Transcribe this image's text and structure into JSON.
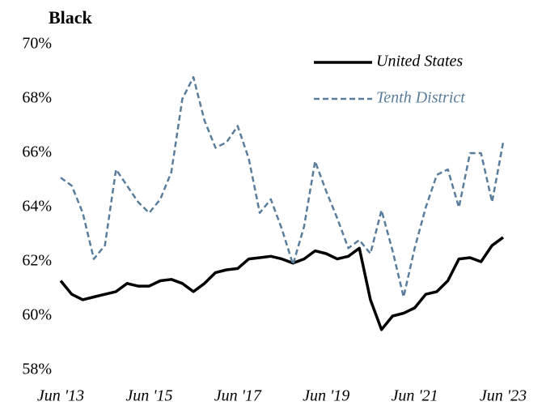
{
  "chart_data": {
    "type": "line",
    "title": "Black",
    "categories": [
      "Jun '13",
      null,
      null,
      null,
      null,
      null,
      null,
      null,
      "Jun '15",
      null,
      null,
      null,
      null,
      null,
      null,
      null,
      "Jun '17",
      null,
      null,
      null,
      null,
      null,
      null,
      null,
      "Jun '19",
      null,
      null,
      null,
      null,
      null,
      null,
      null,
      "Jun '21",
      null,
      null,
      null,
      null,
      null,
      null,
      null,
      "Jun '23"
    ],
    "series": [
      {
        "name": "United States",
        "color": "#000000",
        "dash": false,
        "values": [
          61.3,
          60.8,
          60.6,
          60.7,
          60.8,
          60.9,
          61.2,
          61.1,
          61.1,
          61.3,
          61.35,
          61.2,
          60.9,
          61.2,
          61.6,
          61.7,
          61.75,
          62.1,
          62.15,
          62.2,
          62.1,
          61.95,
          62.1,
          62.4,
          62.3,
          62.1,
          62.2,
          62.5,
          60.6,
          59.5,
          60.0,
          60.1,
          60.3,
          60.8,
          60.9,
          61.3,
          62.1,
          62.15,
          62.0,
          62.6,
          62.9
        ]
      },
      {
        "name": "Tenth District",
        "color": "#5b7d9c",
        "dash": true,
        "values": [
          65.1,
          64.8,
          63.8,
          62.1,
          62.6,
          65.4,
          64.8,
          64.2,
          63.8,
          64.3,
          65.3,
          68.0,
          68.8,
          67.2,
          66.2,
          66.4,
          67.0,
          65.8,
          63.8,
          64.3,
          63.2,
          61.9,
          63.3,
          65.7,
          64.6,
          63.6,
          62.5,
          62.8,
          62.3,
          63.9,
          62.4,
          60.7,
          62.5,
          64.0,
          65.2,
          65.4,
          64.0,
          66.0,
          66.0,
          64.2,
          66.4
        ]
      }
    ],
    "ylim": [
      58,
      70
    ],
    "yticks": [
      {
        "value": 58,
        "label": "58%"
      },
      {
        "value": 60,
        "label": "60%"
      },
      {
        "value": 62,
        "label": "62%"
      },
      {
        "value": 64,
        "label": "64%"
      },
      {
        "value": 66,
        "label": "66%"
      },
      {
        "value": 68,
        "label": "68%"
      },
      {
        "value": 70,
        "label": "70%"
      }
    ],
    "grid": false,
    "legend": "top-right"
  }
}
